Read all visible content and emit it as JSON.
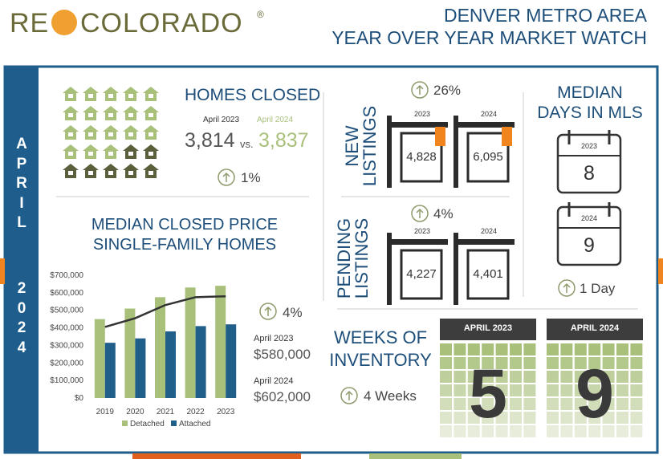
{
  "header": {
    "logo_left": "RE",
    "logo_right": "COLORADO",
    "logo_mark": "®",
    "title_lines": [
      "DENVER METRO AREA",
      "YEAR OVER YEAR MARKET WATCH"
    ]
  },
  "sidebar": {
    "month": "APRIL",
    "year": "2024"
  },
  "homes_closed": {
    "title": "HOMES CLOSED",
    "label_2023": "April 2023",
    "label_2024": "April 2024",
    "value_2023": "3,814",
    "vs": "vs.",
    "value_2024": "3,837",
    "change": "1%"
  },
  "chart_data": {
    "type": "bar",
    "title_lines": [
      "MEDIAN CLOSED PRICE",
      "SINGLE-FAMILY HOMES"
    ],
    "categories": [
      "2019",
      "2020",
      "2021",
      "2022",
      "2023"
    ],
    "series": [
      {
        "name": "Detached",
        "color": "#a9c07b",
        "values": [
          450000,
          510000,
          575000,
          630000,
          640000
        ]
      },
      {
        "name": "Attached",
        "color": "#1f5f8a",
        "values": [
          315000,
          340000,
          380000,
          410000,
          420000
        ]
      },
      {
        "type": "line",
        "color": "#333333",
        "values": [
          405000,
          455000,
          530000,
          575000,
          580000
        ]
      }
    ],
    "ylim": [
      0,
      700000
    ],
    "yticks": [
      {
        "value": 0,
        "label": "$0"
      },
      {
        "value": 100000,
        "label": "$100,000"
      },
      {
        "value": 200000,
        "label": "$200,000"
      },
      {
        "value": 300000,
        "label": "$300,000"
      },
      {
        "value": 400000,
        "label": "$400,000"
      },
      {
        "value": 500000,
        "label": "$500,000"
      },
      {
        "value": 600000,
        "label": "$600,000"
      },
      {
        "value": 700000,
        "label": "$700,000"
      }
    ],
    "change": "4%",
    "notes": [
      {
        "label": "April 2023",
        "value": "$580,000"
      },
      {
        "label": "April 2024",
        "value": "$602,000"
      }
    ]
  },
  "new_listings": {
    "title_lines": [
      "NEW",
      "LISTINGS"
    ],
    "change": "26%",
    "years": [
      "2023",
      "2024"
    ],
    "values": [
      "4,828",
      "6,095"
    ]
  },
  "pending_listings": {
    "title_lines": [
      "PENDING",
      "LISTINGS"
    ],
    "change": "4%",
    "years": [
      "2023",
      "2024"
    ],
    "values": [
      "4,227",
      "4,401"
    ]
  },
  "days_in_mls": {
    "title_lines": [
      "MEDIAN",
      "DAYS IN MLS"
    ],
    "years": [
      "2023",
      "2024"
    ],
    "values": [
      8,
      9
    ],
    "change": "1 Day"
  },
  "weeks_of_inventory": {
    "title_lines": [
      "WEEKS OF",
      "INVENTORY"
    ],
    "change": "4 Weeks",
    "labels": [
      "APRIL 2023",
      "APRIL 2024"
    ],
    "values": [
      5,
      9
    ]
  }
}
